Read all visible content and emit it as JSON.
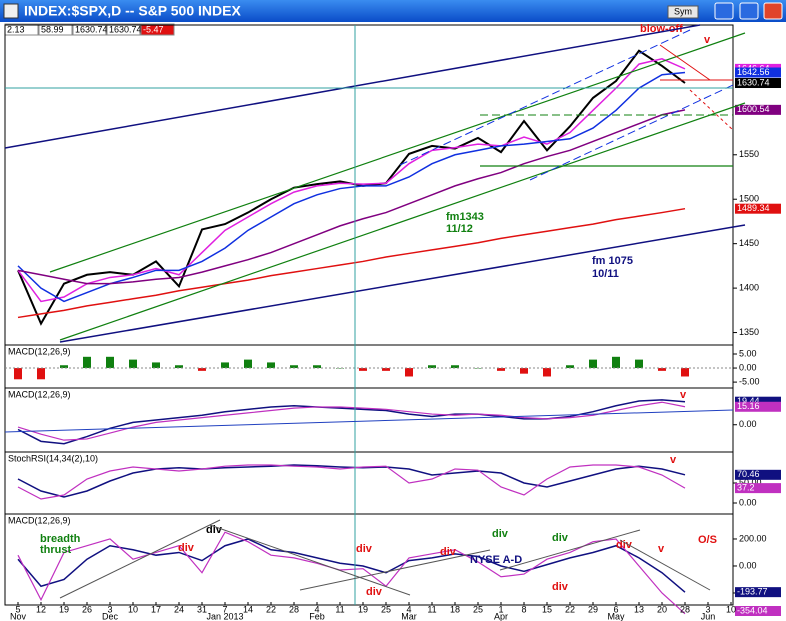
{
  "window_title": "INDEX:$SPX,D -- S&P 500 INDEX",
  "toolbar": {
    "sym_button": "Sym"
  },
  "header_values": [
    2.13,
    58.99,
    1630.74,
    1630.74,
    -5.47
  ],
  "x_axis": {
    "categories": [
      "5",
      "12",
      "19",
      "26",
      "3",
      "10",
      "17",
      "24",
      "31",
      "7",
      "14",
      "22",
      "28",
      "4",
      "11",
      "19",
      "25",
      "4",
      "11",
      "18",
      "25",
      "1",
      "8",
      "15",
      "22",
      "29",
      "6",
      "13",
      "20",
      "28",
      "3",
      "10"
    ],
    "months": [
      "Nov",
      null,
      null,
      null,
      "Dec",
      null,
      null,
      null,
      null,
      "Jan 2013",
      null,
      null,
      null,
      "Feb",
      null,
      null,
      null,
      "Mar",
      null,
      null,
      null,
      "Apr",
      null,
      null,
      null,
      null,
      "May",
      null,
      null,
      null,
      "Jun",
      null
    ]
  },
  "chart_data": [
    {
      "type": "line",
      "ylim": [
        1336,
        1696
      ],
      "yticks": [
        1350,
        1400,
        1450,
        1500,
        1550
      ],
      "series": [
        {
          "name": "SPX",
          "color": "#000000",
          "width": 2,
          "last_value_box": true,
          "values": [
            1420,
            1360,
            1405,
            1415,
            1418,
            1415,
            1430,
            1402,
            1466,
            1472,
            1485,
            1500,
            1513,
            1517,
            1520,
            1515,
            1518,
            1551,
            1560,
            1557,
            1569,
            1553,
            1588,
            1555,
            1582,
            1614,
            1633,
            1667,
            1650,
            1630.74,
            null,
            null
          ]
        },
        {
          "name": "MA10",
          "color": "#e020e0",
          "width": 1.5,
          "last_value_box": true,
          "values": [
            1420,
            1385,
            1390,
            1405,
            1412,
            1415,
            1422,
            1415,
            1440,
            1465,
            1480,
            1495,
            1508,
            1515,
            1518,
            1517,
            1518,
            1540,
            1555,
            1558,
            1562,
            1560,
            1570,
            1562,
            1575,
            1600,
            1625,
            1652,
            1658,
            1646.64,
            null,
            null
          ]
        },
        {
          "name": "MA20",
          "color": "#1030e0",
          "width": 1.5,
          "last_value_box": true,
          "values": [
            1425,
            1400,
            1385,
            1395,
            1405,
            1412,
            1420,
            1420,
            1430,
            1445,
            1465,
            1480,
            1495,
            1505,
            1512,
            1515,
            1515,
            1525,
            1540,
            1550,
            1555,
            1560,
            1562,
            1565,
            1568,
            1580,
            1600,
            1625,
            1640,
            1642.56,
            null,
            null
          ]
        },
        {
          "name": "MA50",
          "color": "#800080",
          "width": 1.5,
          "last_value_box": true,
          "values": [
            1420,
            1415,
            1410,
            1405,
            1405,
            1407,
            1410,
            1412,
            1418,
            1425,
            1432,
            1440,
            1450,
            1460,
            1470,
            1478,
            1485,
            1495,
            1505,
            1515,
            1523,
            1530,
            1540,
            1548,
            1555,
            1565,
            1575,
            1585,
            1595,
            1600.54,
            null,
            null
          ]
        },
        {
          "name": "MA200",
          "color": "#e01010",
          "width": 1.5,
          "last_value_box": true,
          "values": [
            1367,
            1371,
            1375,
            1380,
            1384,
            1388,
            1392,
            1397,
            1401,
            1405,
            1409,
            1414,
            1418,
            1422,
            1426,
            1430,
            1435,
            1439,
            1443,
            1447,
            1451,
            1456,
            1460,
            1464,
            1468,
            1472,
            1477,
            1481,
            1485,
            1489.34,
            null,
            null
          ]
        }
      ],
      "annotations": [
        {
          "text": "blow-off",
          "color": "#e01010"
        },
        {
          "text": "v",
          "color": "#e01010"
        },
        {
          "text": "fm1343",
          "color": "#108010"
        },
        {
          "text": "11/12",
          "color": "#108010"
        },
        {
          "text": "fm 1075",
          "color": "#101080"
        },
        {
          "text": "10/11",
          "color": "#101080"
        }
      ]
    },
    {
      "type": "bar",
      "title": "MACD(12,26,9)",
      "ylim": [
        -7.1,
        8.2
      ],
      "yticks": [
        {
          "value": 5,
          "label": "5.00"
        },
        {
          "value": 0,
          "label": "0.00"
        },
        {
          "value": -5,
          "label": "-5.00"
        }
      ],
      "color": "#108010",
      "negative_color": "#e01010",
      "values": [
        -4,
        -4,
        1,
        4,
        4,
        3,
        2,
        1,
        -1,
        2,
        3,
        2,
        1,
        1,
        0,
        -1,
        -1,
        -3,
        1,
        1,
        0,
        -1,
        -2,
        -3,
        1,
        3,
        4,
        3,
        -1,
        -3,
        null,
        null
      ]
    },
    {
      "type": "line",
      "title": "MACD(12,26,9)",
      "ylim": [
        -23,
        31
      ],
      "yticks": [
        {
          "value": 0,
          "label": "0.00"
        }
      ],
      "series": [
        {
          "name": "MACD",
          "color": "#101080",
          "width": 1.5,
          "last_value_box": true,
          "values": [
            -4,
            -14,
            -16,
            -10,
            -3,
            2,
            4,
            6,
            8,
            11,
            13,
            15,
            16,
            15,
            14,
            13,
            12,
            9,
            7,
            9,
            9,
            7,
            5,
            5,
            7,
            11,
            16,
            20,
            21,
            19.44,
            null,
            null
          ]
        },
        {
          "name": "Signal",
          "color": "#c030c0",
          "width": 1.2,
          "last_value_box": true,
          "values": [
            -2,
            -8,
            -13,
            -12,
            -7,
            -2,
            2,
            4,
            6,
            8,
            10,
            12,
            14,
            15,
            15,
            14,
            13,
            11,
            9,
            8,
            9,
            8,
            6,
            5,
            6,
            8,
            12,
            16,
            19,
            15.16,
            null,
            null
          ]
        }
      ],
      "annotations": [
        {
          "text": "v",
          "color": "#e01010"
        }
      ]
    },
    {
      "type": "line",
      "title": "StochRSI(14,34(2),10)",
      "ylim": [
        -27.5,
        127.5
      ],
      "yticks": [
        {
          "value": 50,
          "label": "50.00"
        },
        {
          "value": 0,
          "label": "0.00"
        }
      ],
      "series": [
        {
          "name": "Slow",
          "color": "#101080",
          "width": 1.5,
          "last_value_box": true,
          "values": [
            60,
            30,
            15,
            30,
            55,
            75,
            85,
            88,
            85,
            88,
            90,
            92,
            95,
            93,
            90,
            88,
            90,
            85,
            70,
            75,
            80,
            75,
            50,
            40,
            55,
            70,
            85,
            92,
            85,
            70.46,
            null,
            null
          ]
        },
        {
          "name": "Fast",
          "color": "#c030c0",
          "width": 1.2,
          "last_value_box": true,
          "values": [
            40,
            10,
            20,
            60,
            80,
            90,
            85,
            80,
            85,
            92,
            95,
            95,
            92,
            90,
            85,
            90,
            92,
            50,
            60,
            85,
            82,
            40,
            20,
            60,
            90,
            95,
            95,
            90,
            70,
            37.2,
            null,
            null
          ]
        }
      ],
      "annotations": [
        {
          "text": "v",
          "color": "#e01010"
        }
      ]
    },
    {
      "type": "line",
      "title": "MACD(12,26,9)",
      "ylim": [
        -289,
        385
      ],
      "yticks": [
        {
          "value": 200,
          "label": "200.00"
        },
        {
          "value": 0,
          "label": "0.00"
        },
        {
          "value": -200,
          "label": "-200.00"
        }
      ],
      "series": [
        {
          "name": "MACD",
          "color": "#101080",
          "width": 1.5,
          "last_value_box": true,
          "values": [
            50,
            -150,
            -100,
            50,
            150,
            120,
            80,
            100,
            40,
            150,
            200,
            120,
            100,
            60,
            20,
            0,
            -50,
            40,
            60,
            90,
            70,
            0,
            -40,
            10,
            60,
            100,
            150,
            60,
            -50,
            -193.77,
            null,
            null
          ]
        },
        {
          "name": "Signal",
          "color": "#c030c0",
          "width": 1.2,
          "last_value_box": true,
          "values": [
            80,
            -250,
            100,
            150,
            200,
            50,
            100,
            150,
            -50,
            250,
            180,
            80,
            60,
            20,
            -30,
            -20,
            -150,
            60,
            90,
            120,
            30,
            -80,
            -60,
            50,
            100,
            180,
            200,
            0,
            -200,
            -354.04,
            null,
            null
          ]
        }
      ],
      "annotations": [
        {
          "text": "breadth",
          "color": "#108010"
        },
        {
          "text": "thrust",
          "color": "#108010"
        },
        {
          "text": "div",
          "color": "#e01010"
        },
        {
          "text": "div",
          "color": "#000000"
        },
        {
          "text": "div",
          "color": "#e01010"
        },
        {
          "text": "div",
          "color": "#e01010"
        },
        {
          "text": "div",
          "color": "#e01010"
        },
        {
          "text": "NYSE A-D",
          "color": "#101080"
        },
        {
          "text": "div",
          "color": "#108010"
        },
        {
          "text": "div",
          "color": "#108010"
        },
        {
          "text": "div",
          "color": "#e01010"
        },
        {
          "text": "div",
          "color": "#e01010"
        },
        {
          "text": "v",
          "color": "#e01010"
        },
        {
          "text": "O/S",
          "color": "#e01010"
        }
      ]
    }
  ]
}
